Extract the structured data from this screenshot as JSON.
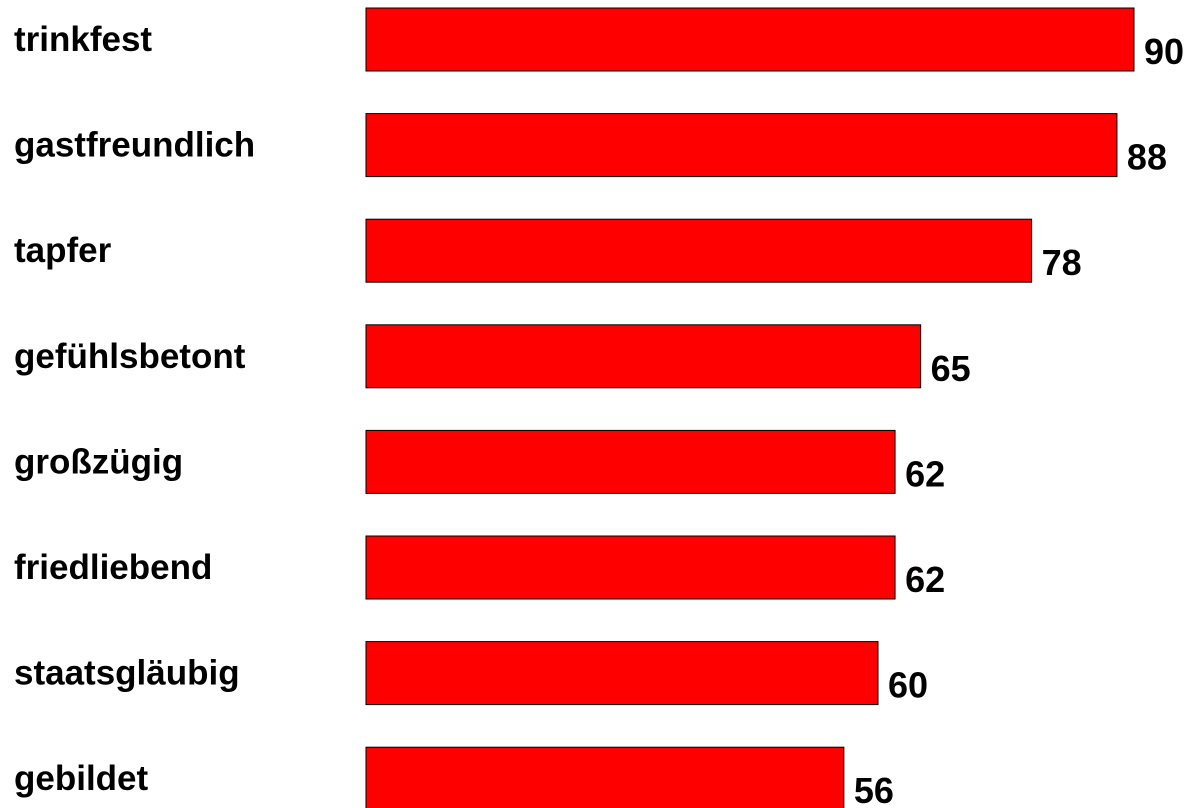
{
  "chart_data": {
    "type": "bar",
    "orientation": "horizontal",
    "categories": [
      "trinkfest",
      "gastfreundlich",
      "tapfer",
      "gefühlsbetont",
      "großzügig",
      "friedliebend",
      "staatsgläubig",
      "gebildet"
    ],
    "values": [
      90,
      88,
      78,
      65,
      62,
      62,
      60,
      56
    ],
    "title": "",
    "xlabel": "",
    "ylabel": "",
    "xlim": [
      0,
      90
    ],
    "grid": false,
    "legend": "none",
    "data_labels": true,
    "bar_color": "#ff0000",
    "bar_edge_color": "#000000"
  }
}
